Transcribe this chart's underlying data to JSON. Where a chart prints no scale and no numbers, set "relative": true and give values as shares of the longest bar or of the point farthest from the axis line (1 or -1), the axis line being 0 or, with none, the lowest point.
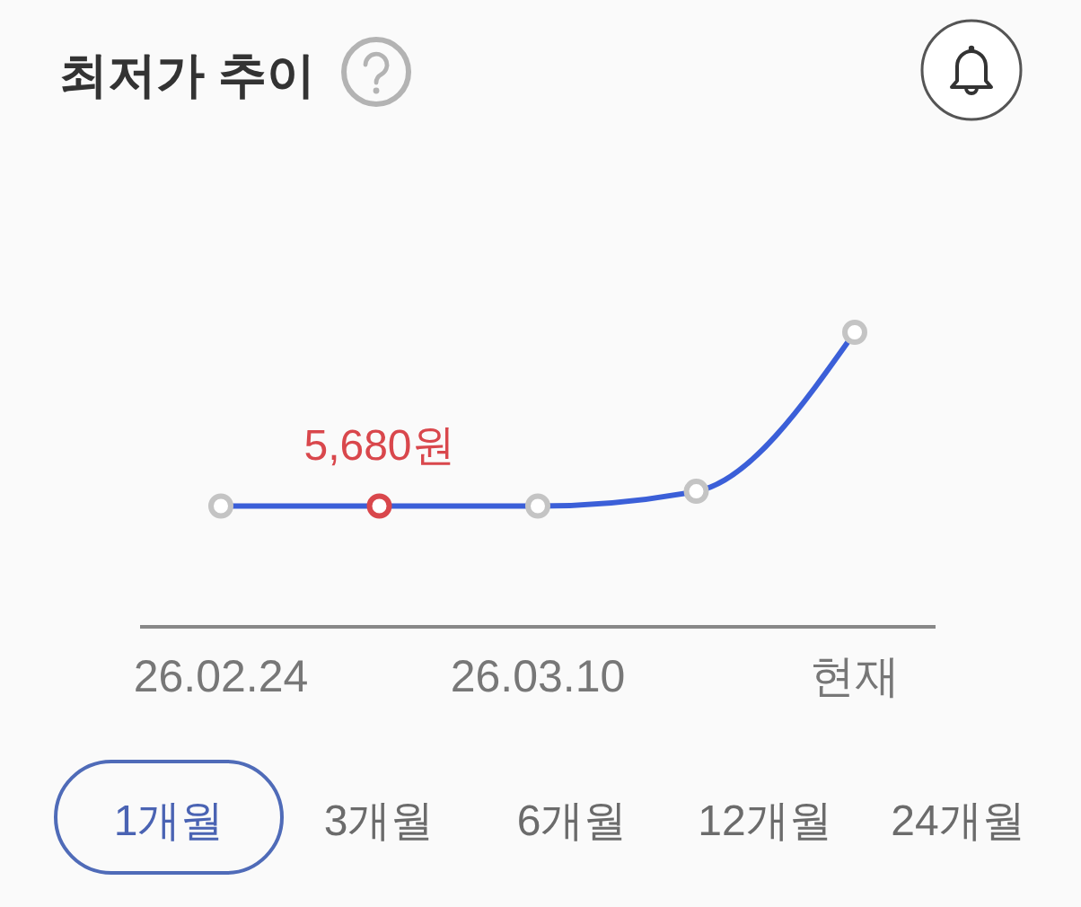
{
  "chart_data": {
    "type": "line",
    "title": "최저가 추이",
    "categories": [
      "26.02.24",
      null,
      "26.03.10",
      null,
      "현재"
    ],
    "relative": true,
    "tick_labels": "x",
    "marker": "circle",
    "line_style": "solid",
    "series": [
      {
        "color": "#3b5fd8",
        "values": [
          0.41,
          0.41,
          0.41,
          0.46,
          1
        ],
        "colors": [
          "#c4c4c4",
          "#d9474c",
          "#c4c4c4",
          "#c4c4c4",
          "#c4c4c4"
        ]
      }
    ],
    "annotations": [
      {
        "text": "5,680원",
        "y": 0.41
      },
      "1개월",
      "3개월",
      "6개월",
      "12개월",
      "24개월"
    ]
  }
}
